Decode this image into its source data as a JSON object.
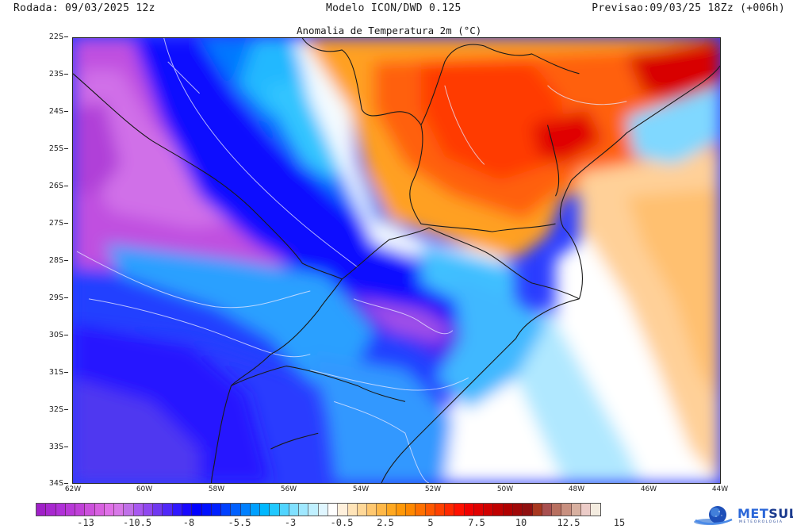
{
  "header": {
    "rodada": "Rodada: 09/03/2025 12z",
    "modelo": "Modelo ICON/DWD 0.125",
    "previsao": "Previsao:09/03/25 18Zz (+006h)"
  },
  "map": {
    "title": "Anomalia de Temperatura 2m (°C)",
    "lat_ticks": [
      "22S",
      "23S",
      "24S",
      "25S",
      "26S",
      "27S",
      "28S",
      "29S",
      "30S",
      "31S",
      "32S",
      "33S",
      "34S"
    ],
    "lon_ticks": [
      "62W",
      "60W",
      "58W",
      "56W",
      "54W",
      "52W",
      "50W",
      "48W",
      "46W",
      "44W"
    ]
  },
  "colorbar": {
    "labels": [
      "-13",
      "-10.5",
      "-8",
      "-5.5",
      "-3",
      "-0.5",
      "2.5",
      "5",
      "7.5",
      "10",
      "12.5",
      "15"
    ],
    "colors": [
      "#a020c8",
      "#a828d0",
      "#b030d8",
      "#b838d8",
      "#c040d8",
      "#cc50dc",
      "#d860e0",
      "#e070e8",
      "#d878e8",
      "#c070e8",
      "#a858f0",
      "#9048f0",
      "#7038f0",
      "#5028f8",
      "#3018ff",
      "#1808ff",
      "#0000ff",
      "#0010ff",
      "#0020ff",
      "#0040ff",
      "#0060ff",
      "#0080ff",
      "#00a0ff",
      "#00b8ff",
      "#20c8ff",
      "#50d4ff",
      "#80e0ff",
      "#a0e8ff",
      "#c0f0ff",
      "#e0f6ff",
      "#ffffff",
      "#fff0dc",
      "#ffe4b8",
      "#ffd898",
      "#ffc870",
      "#ffb848",
      "#ffa820",
      "#ff9808",
      "#ff8800",
      "#ff7000",
      "#ff5800",
      "#ff4000",
      "#ff2800",
      "#ff1000",
      "#f00000",
      "#e00000",
      "#d00000",
      "#c00000",
      "#b00000",
      "#a00808",
      "#901010",
      "#a83820",
      "#a85050",
      "#b87060",
      "#c89080",
      "#d8b0a0",
      "#ecccc8",
      "#f4ece0"
    ]
  },
  "logo": {
    "brand_a": "MET",
    "brand_b": "SUL",
    "subtitle": "METEOROLOGIA"
  },
  "colors": {
    "cold_extreme": "#b040d8",
    "cold_strong": "#1010ff",
    "cold_mild": "#40c8ff",
    "neutral": "#ffffff",
    "warm_mild": "#ffc880",
    "warm_strong": "#ff4000",
    "border_lines": "#1a1a1a"
  }
}
